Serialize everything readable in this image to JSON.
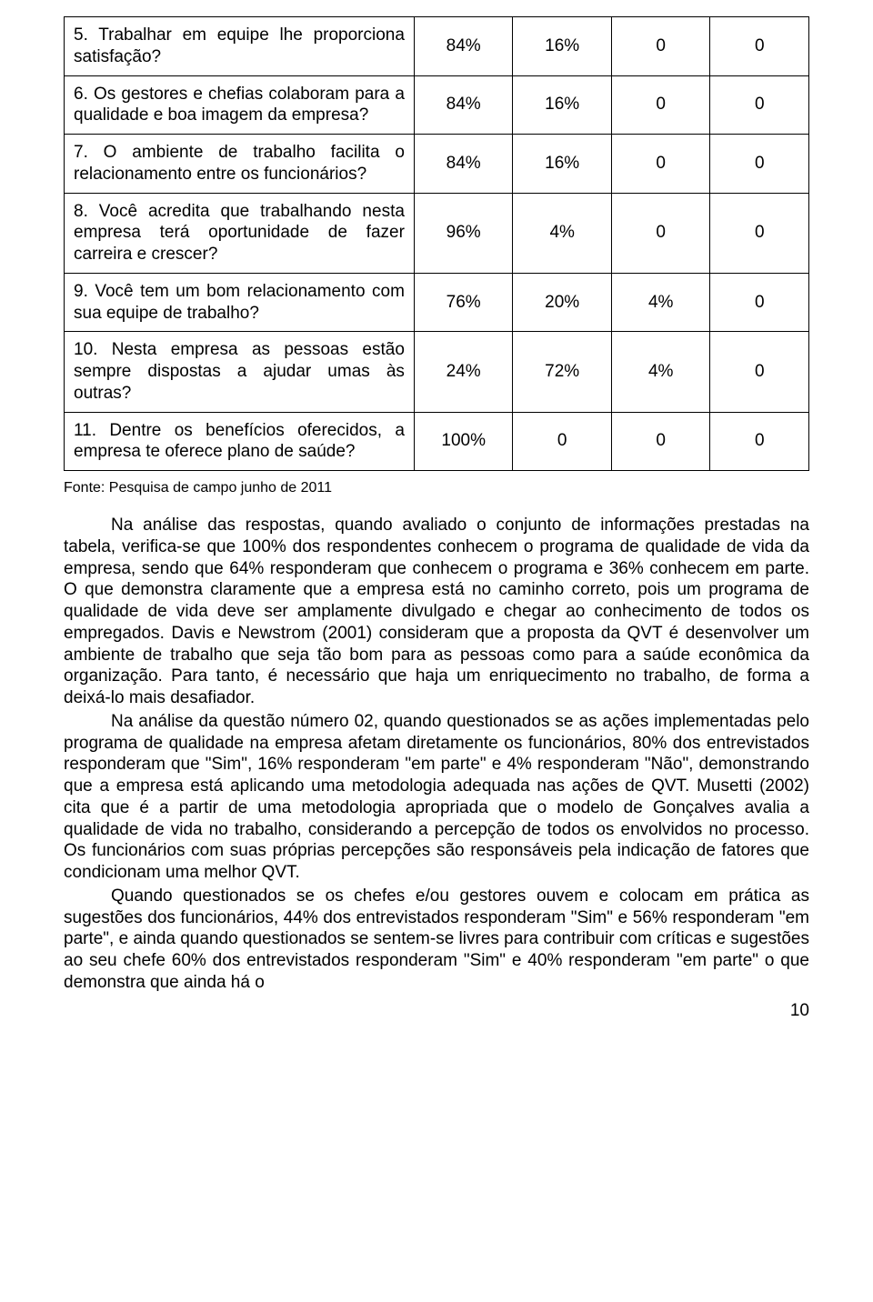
{
  "table": {
    "rows": [
      {
        "q": "5. Trabalhar em equipe lhe proporciona satisfação?",
        "c1": "84%",
        "c2": "16%",
        "c3": "0",
        "c4": "0"
      },
      {
        "q": "6. Os gestores e chefias colaboram para a qualidade e boa imagem da empresa?",
        "c1": "84%",
        "c2": "16%",
        "c3": "0",
        "c4": "0"
      },
      {
        "q": "7. O ambiente de trabalho facilita o relacionamento entre os funcionários?",
        "c1": "84%",
        "c2": "16%",
        "c3": "0",
        "c4": "0"
      },
      {
        "q": "8. Você acredita que trabalhando nesta empresa terá oportunidade de fazer carreira e crescer?",
        "c1": "96%",
        "c2": "4%",
        "c3": "0",
        "c4": "0"
      },
      {
        "q": "9. Você tem um bom relacionamento com sua equipe de trabalho?",
        "c1": "76%",
        "c2": "20%",
        "c3": "4%",
        "c4": "0"
      },
      {
        "q": "10. Nesta empresa as pessoas estão sempre dispostas a ajudar umas às outras?",
        "c1": "24%",
        "c2": "72%",
        "c3": "4%",
        "c4": "0"
      },
      {
        "q": "11. Dentre os benefícios oferecidos, a empresa te oferece plano de saúde?",
        "c1": "100%",
        "c2": "0",
        "c3": "0",
        "c4": "0"
      }
    ]
  },
  "source_text": "Fonte: Pesquisa de campo junho de 2011",
  "paragraphs": {
    "p1": "Na análise das respostas, quando avaliado o conjunto de informações prestadas na tabela, verifica-se que 100% dos respondentes conhecem o programa de qualidade de vida da empresa, sendo que 64% responderam que conhecem o programa e 36% conhecem em parte. O que demonstra claramente que a empresa está no caminho correto, pois um programa de qualidade de vida deve ser amplamente divulgado e chegar ao conhecimento de todos os empregados. Davis e Newstrom (2001) consideram que a proposta da QVT é desenvolver um ambiente de trabalho que seja tão bom para as pessoas como para a saúde econômica da organização. Para tanto, é necessário que haja um enriquecimento no trabalho, de forma a deixá-lo mais desafiador.",
    "p2": "Na análise da questão número 02, quando questionados se as ações implementadas pelo programa de qualidade na empresa afetam diretamente os funcionários, 80% dos entrevistados responderam que \"Sim\", 16% responderam \"em parte\" e 4% responderam \"Não\", demonstrando que a empresa está aplicando uma metodologia adequada nas ações de QVT. Musetti (2002) cita que é a partir de uma metodologia apropriada que o modelo de Gonçalves avalia a qualidade de vida no trabalho, considerando a percepção de todos os envolvidos no processo. Os funcionários com suas próprias percepções são responsáveis pela indicação de fatores que condicionam uma melhor QVT.",
    "p3": "Quando questionados se os chefes e/ou gestores ouvem e colocam em prática as sugestões dos funcionários, 44% dos entrevistados responderam \"Sim\" e 56% responderam \"em parte\", e ainda quando questionados se sentem-se livres para contribuir com críticas e sugestões ao seu chefe 60% dos entrevistados responderam \"Sim\" e 40% responderam \"em parte\" o que demonstra que ainda há o"
  },
  "page_number": "10"
}
